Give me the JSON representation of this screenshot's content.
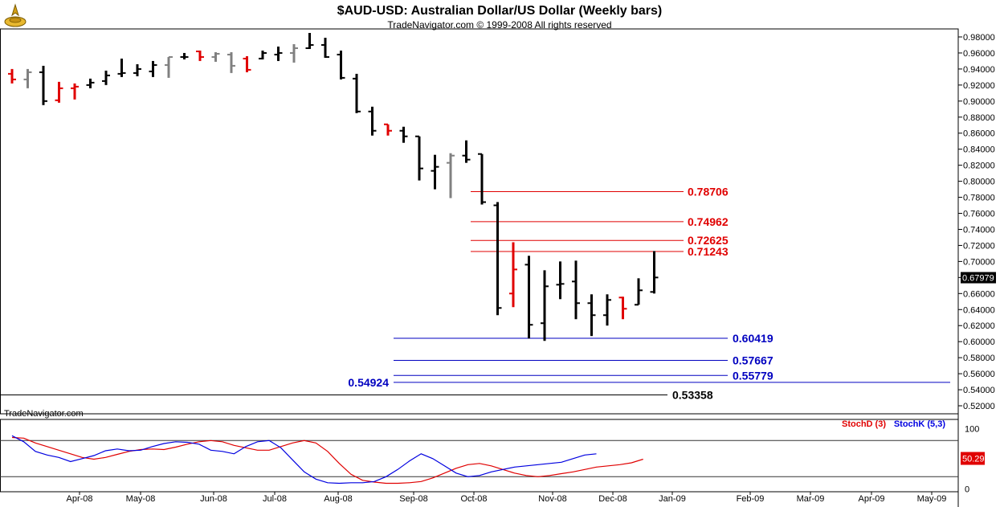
{
  "header": {
    "title": "$AUD-USD:  Australian Dollar/US Dollar  (Weekly bars)",
    "subtitle": "TradeNavigator.com © 1999-2008 All rights reserved"
  },
  "watermark": "TradeNavigator.com",
  "colors": {
    "bar_up": "#000000",
    "bar_red": "#e00000",
    "bar_gray": "#808080",
    "fib_red": "#e00000",
    "fib_blue": "#0000c0",
    "stoch_d": "#e00000",
    "stoch_k": "#0000e0"
  },
  "chart_data": [
    {
      "type": "ohlc",
      "title": "$AUD-USD:  Australian Dollar/US Dollar  (Weekly bars)",
      "ylim": [
        0.51,
        0.99
      ],
      "y_ticks": [
        "0.98000",
        "0.96000",
        "0.94000",
        "0.92000",
        "0.90000",
        "0.88000",
        "0.86000",
        "0.84000",
        "0.82000",
        "0.80000",
        "0.78000",
        "0.76000",
        "0.74000",
        "0.72000",
        "0.70000",
        "0.68000",
        "0.66000",
        "0.64000",
        "0.62000",
        "0.60000",
        "0.58000",
        "0.56000",
        "0.54000",
        "0.52000"
      ],
      "x_labels": [
        "Apr-08",
        "May-08",
        "Jun-08",
        "Jul-08",
        "Aug-08",
        "Sep-08",
        "Oct-08",
        "Nov-08",
        "Dec-08",
        "Jan-09",
        "Feb-09",
        "Mar-09",
        "Apr-09",
        "May-09"
      ],
      "last_price": "0.67979",
      "bars": [
        {
          "o": 0.934,
          "h": 0.94,
          "l": 0.922,
          "c": 0.927,
          "color": "red"
        },
        {
          "o": 0.927,
          "h": 0.94,
          "l": 0.916,
          "c": 0.936,
          "color": "gray"
        },
        {
          "o": 0.936,
          "h": 0.944,
          "l": 0.895,
          "c": 0.9,
          "color": "black"
        },
        {
          "o": 0.901,
          "h": 0.924,
          "l": 0.898,
          "c": 0.916,
          "color": "red"
        },
        {
          "o": 0.916,
          "h": 0.922,
          "l": 0.902,
          "c": 0.918,
          "color": "red"
        },
        {
          "o": 0.92,
          "h": 0.928,
          "l": 0.916,
          "c": 0.923,
          "color": "black"
        },
        {
          "o": 0.925,
          "h": 0.938,
          "l": 0.92,
          "c": 0.932,
          "color": "black"
        },
        {
          "o": 0.934,
          "h": 0.953,
          "l": 0.93,
          "c": 0.935,
          "color": "black"
        },
        {
          "o": 0.935,
          "h": 0.946,
          "l": 0.931,
          "c": 0.94,
          "color": "black"
        },
        {
          "o": 0.937,
          "h": 0.95,
          "l": 0.93,
          "c": 0.945,
          "color": "black"
        },
        {
          "o": 0.945,
          "h": 0.955,
          "l": 0.929,
          "c": 0.955,
          "color": "gray"
        },
        {
          "o": 0.955,
          "h": 0.96,
          "l": 0.952,
          "c": 0.955,
          "color": "black"
        },
        {
          "o": 0.962,
          "h": 0.963,
          "l": 0.95,
          "c": 0.955,
          "color": "red"
        },
        {
          "o": 0.955,
          "h": 0.961,
          "l": 0.949,
          "c": 0.959,
          "color": "gray"
        },
        {
          "o": 0.958,
          "h": 0.961,
          "l": 0.935,
          "c": 0.944,
          "color": "gray"
        },
        {
          "o": 0.953,
          "h": 0.956,
          "l": 0.936,
          "c": 0.939,
          "color": "red"
        },
        {
          "o": 0.953,
          "h": 0.963,
          "l": 0.952,
          "c": 0.96,
          "color": "black"
        },
        {
          "o": 0.958,
          "h": 0.968,
          "l": 0.95,
          "c": 0.96,
          "color": "black"
        },
        {
          "o": 0.96,
          "h": 0.971,
          "l": 0.948,
          "c": 0.966,
          "color": "gray"
        },
        {
          "o": 0.966,
          "h": 0.985,
          "l": 0.965,
          "c": 0.97,
          "color": "black"
        },
        {
          "o": 0.97,
          "h": 0.979,
          "l": 0.954,
          "c": 0.955,
          "color": "black"
        },
        {
          "o": 0.958,
          "h": 0.963,
          "l": 0.927,
          "c": 0.929,
          "color": "black"
        },
        {
          "o": 0.928,
          "h": 0.934,
          "l": 0.885,
          "c": 0.887,
          "color": "black"
        },
        {
          "o": 0.887,
          "h": 0.893,
          "l": 0.857,
          "c": 0.863,
          "color": "black"
        },
        {
          "o": 0.871,
          "h": 0.871,
          "l": 0.857,
          "c": 0.863,
          "color": "red"
        },
        {
          "o": 0.863,
          "h": 0.868,
          "l": 0.848,
          "c": 0.856,
          "color": "black"
        },
        {
          "o": 0.856,
          "h": 0.856,
          "l": 0.801,
          "c": 0.816,
          "color": "black"
        },
        {
          "o": 0.813,
          "h": 0.833,
          "l": 0.79,
          "c": 0.818,
          "color": "black"
        },
        {
          "o": 0.823,
          "h": 0.835,
          "l": 0.779,
          "c": 0.832,
          "color": "gray"
        },
        {
          "o": 0.832,
          "h": 0.851,
          "l": 0.823,
          "c": 0.827,
          "color": "black"
        },
        {
          "o": 0.834,
          "h": 0.834,
          "l": 0.771,
          "c": 0.774,
          "color": "black"
        },
        {
          "o": 0.77,
          "h": 0.774,
          "l": 0.633,
          "c": 0.642,
          "color": "black"
        },
        {
          "o": 0.66,
          "h": 0.724,
          "l": 0.643,
          "c": 0.69,
          "color": "red"
        },
        {
          "o": 0.696,
          "h": 0.707,
          "l": 0.604,
          "c": 0.621,
          "color": "black"
        },
        {
          "o": 0.623,
          "h": 0.689,
          "l": 0.601,
          "c": 0.669,
          "color": "black"
        },
        {
          "o": 0.671,
          "h": 0.7,
          "l": 0.653,
          "c": 0.672,
          "color": "black"
        },
        {
          "o": 0.675,
          "h": 0.701,
          "l": 0.628,
          "c": 0.648,
          "color": "black"
        },
        {
          "o": 0.648,
          "h": 0.659,
          "l": 0.607,
          "c": 0.633,
          "color": "black"
        },
        {
          "o": 0.633,
          "h": 0.659,
          "l": 0.62,
          "c": 0.652,
          "color": "black"
        },
        {
          "o": 0.655,
          "h": 0.656,
          "l": 0.628,
          "c": 0.641,
          "color": "red"
        },
        {
          "o": 0.646,
          "h": 0.679,
          "l": 0.646,
          "c": 0.664,
          "color": "black"
        },
        {
          "o": 0.662,
          "h": 0.713,
          "l": 0.66,
          "c": 0.68,
          "color": "black"
        }
      ],
      "retracement_lines": [
        {
          "value": 0.78706,
          "label": "0.78706",
          "color": "red"
        },
        {
          "value": 0.74962,
          "label": "0.74962",
          "color": "red"
        },
        {
          "value": 0.72625,
          "label": "0.72625",
          "color": "red"
        },
        {
          "value": 0.71243,
          "label": "0.71243",
          "color": "red"
        },
        {
          "value": 0.60419,
          "label": "0.60419",
          "color": "blue"
        },
        {
          "value": 0.57667,
          "label": "0.57667",
          "color": "blue"
        },
        {
          "value": 0.55779,
          "label": "0.55779",
          "color": "blue"
        },
        {
          "value": 0.54924,
          "label": "0.54924",
          "color": "blue"
        },
        {
          "value": 0.53358,
          "label": "0.53358",
          "color": "black"
        }
      ]
    },
    {
      "type": "line",
      "ylim": [
        -5,
        115
      ],
      "y_ticks": [
        "100",
        "0"
      ],
      "levels": [
        80,
        20
      ],
      "last_value": "50.29",
      "series": [
        {
          "name": "StochD (3)",
          "color": "red",
          "values": [
            85,
            84,
            76,
            70,
            64,
            58,
            52,
            49,
            52,
            57,
            62,
            65,
            66,
            65,
            69,
            74,
            78,
            80,
            78,
            72,
            68,
            64,
            64,
            70,
            76,
            80,
            76,
            62,
            42,
            24,
            14,
            11,
            9,
            9,
            10,
            12,
            18,
            26,
            34,
            40,
            42,
            38,
            32,
            26,
            22,
            20,
            22,
            25,
            28,
            32,
            36,
            38,
            40,
            43,
            49
          ]
        },
        {
          "name": "StochK (5,3)",
          "color": "blue",
          "values": [
            88,
            78,
            62,
            56,
            52,
            45,
            50,
            55,
            63,
            66,
            63,
            64,
            70,
            75,
            78,
            77,
            74,
            64,
            62,
            58,
            70,
            78,
            80,
            68,
            48,
            28,
            16,
            10,
            9,
            10,
            10,
            12,
            20,
            32,
            46,
            58,
            50,
            38,
            26,
            20,
            22,
            28,
            32,
            36,
            38,
            40,
            42,
            44,
            50,
            56,
            58
          ]
        }
      ]
    }
  ]
}
